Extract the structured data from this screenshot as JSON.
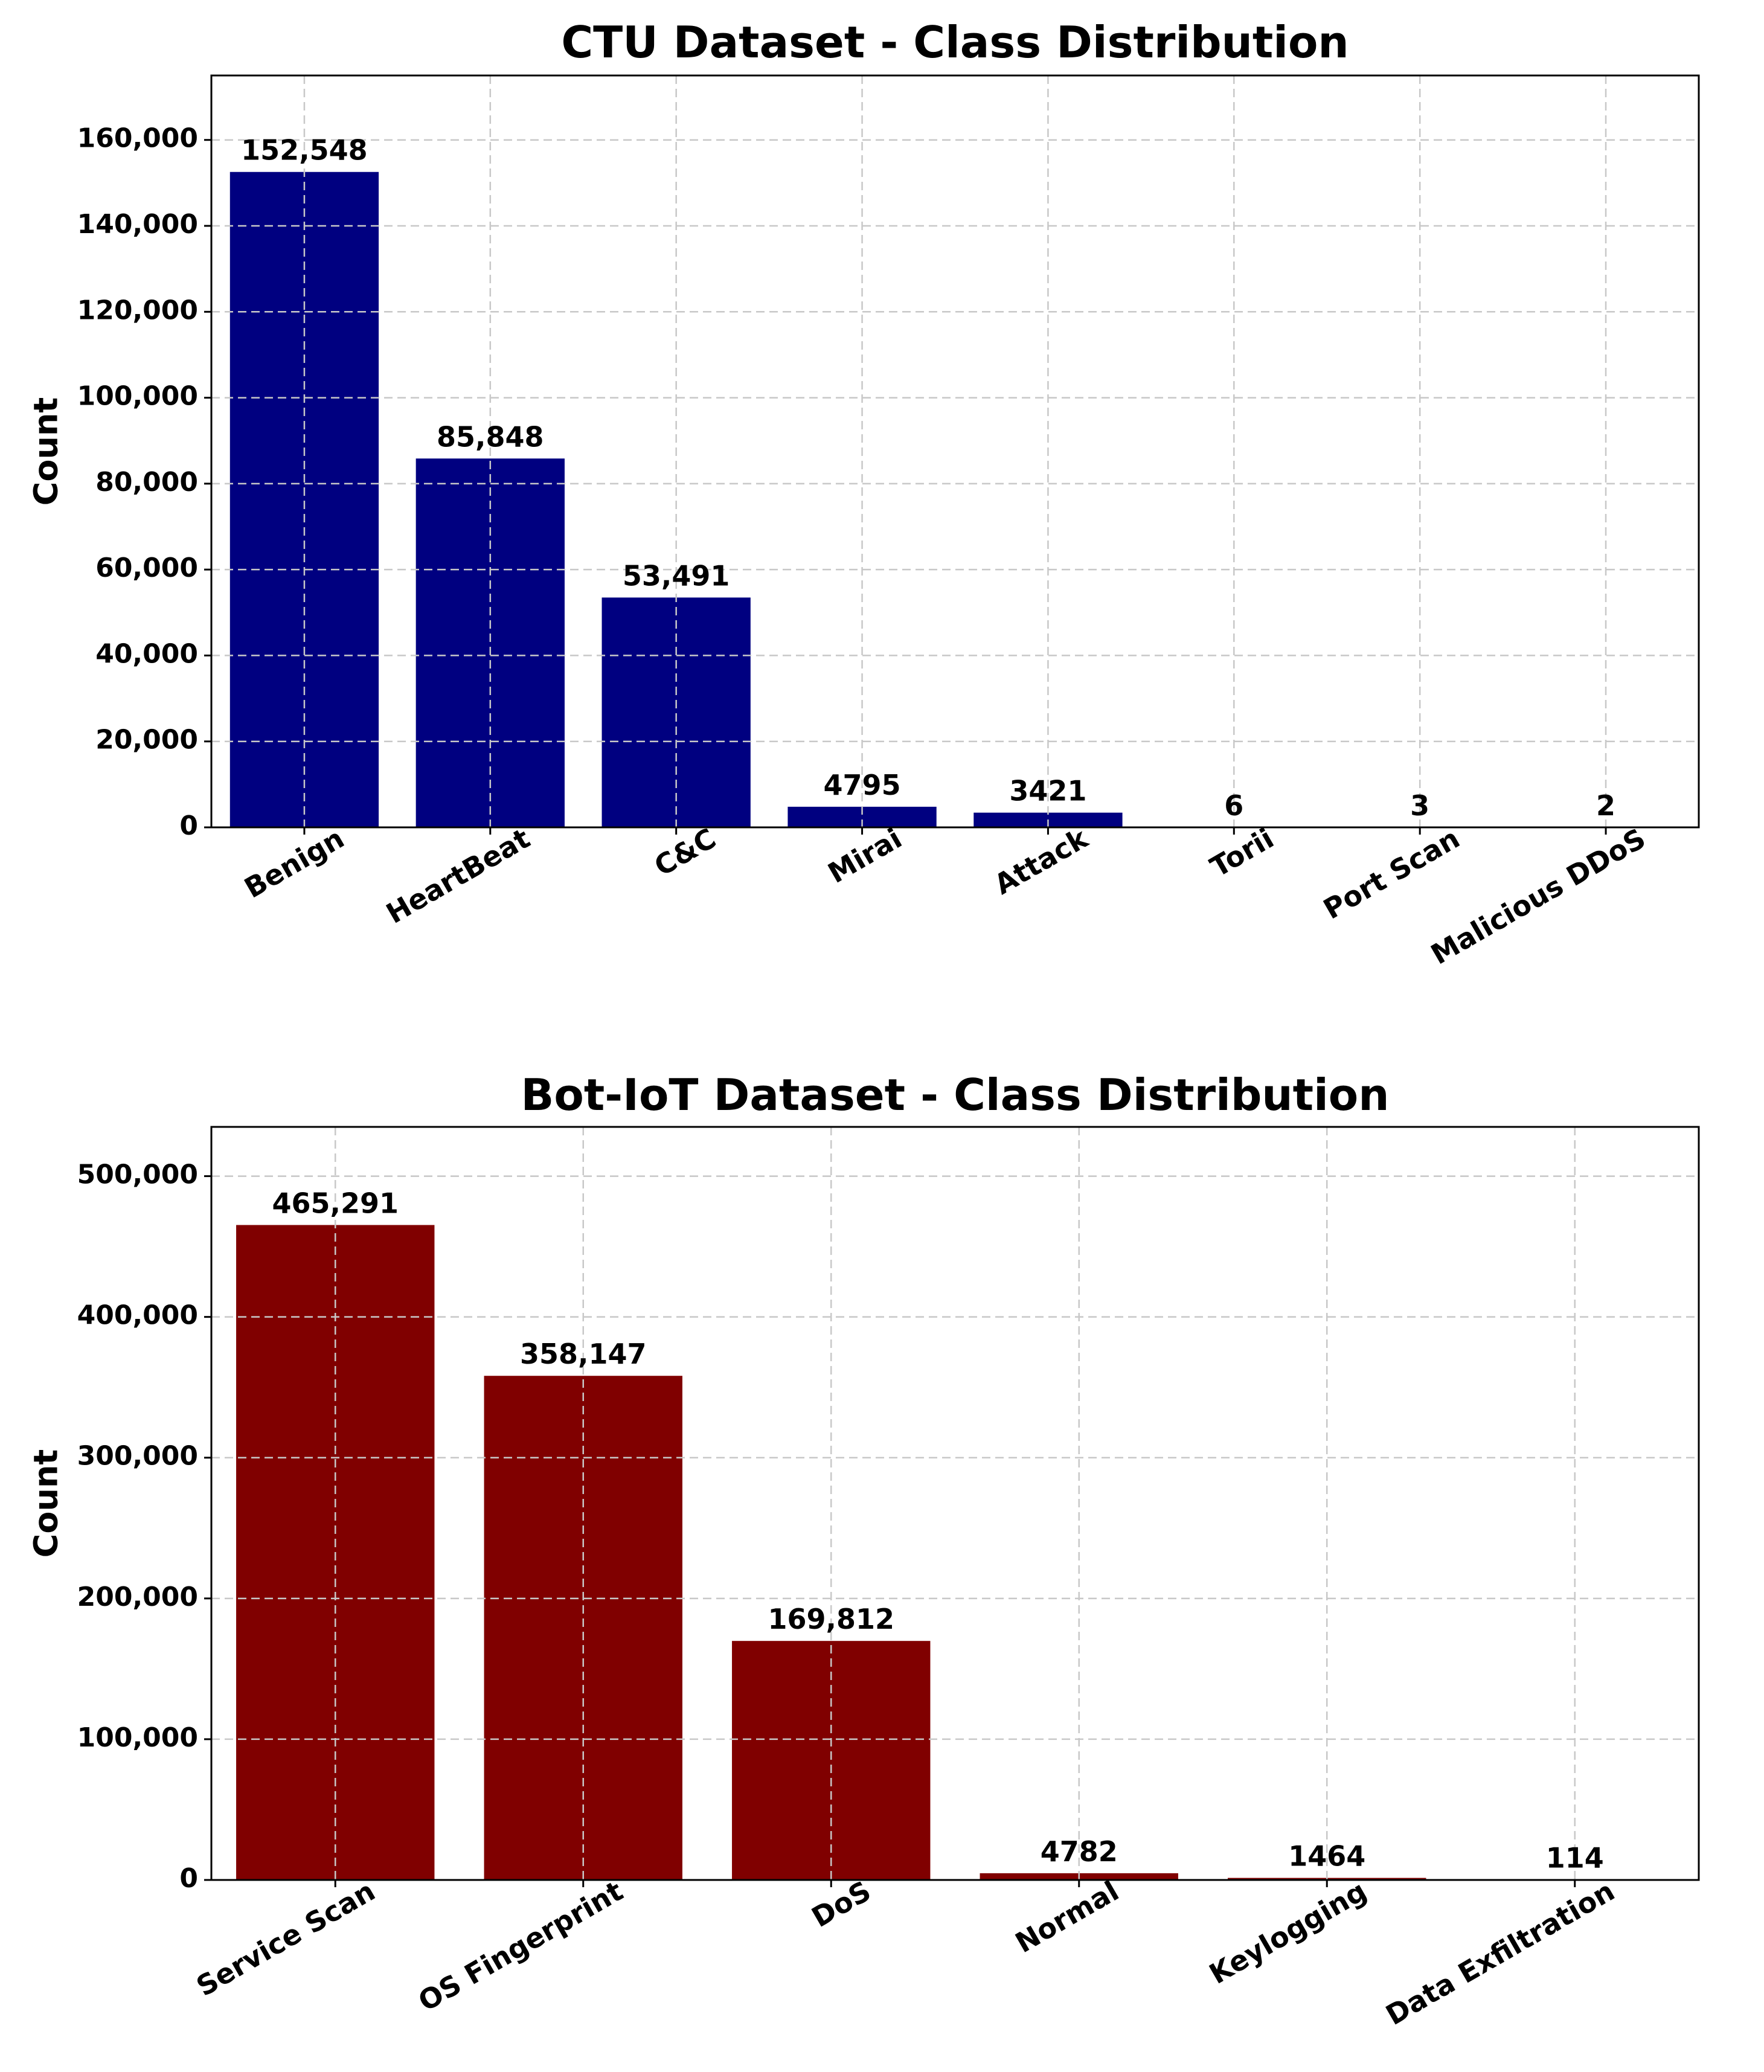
{
  "chart_data": [
    {
      "type": "bar",
      "title": "CTU Dataset - Class Distribution",
      "xlabel": "",
      "ylabel": "Count",
      "ylim": [
        0,
        175000
      ],
      "yticks": [
        0,
        20000,
        40000,
        60000,
        80000,
        100000,
        120000,
        140000,
        160000
      ],
      "ytick_labels": [
        "0",
        "20,000",
        "40,000",
        "60,000",
        "80,000",
        "100,000",
        "120,000",
        "140,000",
        "160,000"
      ],
      "categories": [
        "Benign",
        "HeartBeat",
        "C&C",
        "Mirai",
        "Attack",
        "Torii",
        "Port Scan",
        "Malicious DDoS"
      ],
      "values": [
        152548,
        85848,
        53491,
        4795,
        3421,
        6,
        3,
        2
      ],
      "value_labels": [
        "152,548",
        "85,848",
        "53,491",
        "4795",
        "3421",
        "6",
        "3",
        "2"
      ],
      "color": "#000080",
      "grid": true
    },
    {
      "type": "bar",
      "title": "Bot-IoT Dataset - Class Distribution",
      "xlabel": "",
      "ylabel": "Count",
      "ylim": [
        0,
        535000
      ],
      "yticks": [
        0,
        100000,
        200000,
        300000,
        400000,
        500000
      ],
      "ytick_labels": [
        "0",
        "100,000",
        "200,000",
        "300,000",
        "400,000",
        "500,000"
      ],
      "categories": [
        "Service Scan",
        "OS Fingerprint",
        "DoS",
        "Normal",
        "Keylogging",
        "Data Exfiltration"
      ],
      "values": [
        465291,
        358147,
        169812,
        4782,
        1464,
        114
      ],
      "value_labels": [
        "465,291",
        "358,147",
        "169,812",
        "4782",
        "1464",
        "114"
      ],
      "color": "#800000",
      "grid": true
    }
  ]
}
